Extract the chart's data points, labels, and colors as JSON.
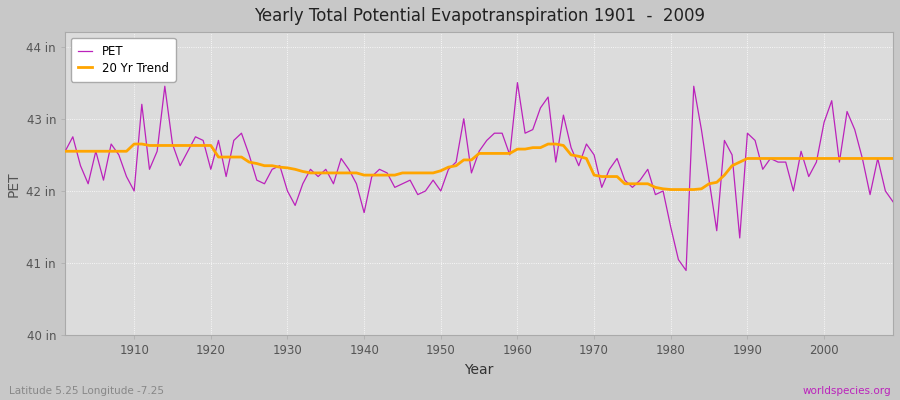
{
  "title": "Yearly Total Potential Evapotranspiration 1901  -  2009",
  "xlabel": "Year",
  "ylabel": "PET",
  "subtitle": "Latitude 5.25 Longitude -7.25",
  "watermark": "worldspecies.org",
  "pet_color": "#BB22BB",
  "trend_color": "#FFA500",
  "fig_bg_color": "#C8C8C8",
  "plot_bg_color": "#DCDCDC",
  "ylim": [
    40.0,
    44.2
  ],
  "yticks": [
    40,
    41,
    42,
    43,
    44
  ],
  "ytick_labels": [
    "40 in",
    "41 in",
    "42 in",
    "43 in",
    "44 in"
  ],
  "xlim": [
    1901,
    2009
  ],
  "xticks": [
    1910,
    1920,
    1930,
    1940,
    1950,
    1960,
    1970,
    1980,
    1990,
    2000
  ],
  "years": [
    1901,
    1902,
    1903,
    1904,
    1905,
    1906,
    1907,
    1908,
    1909,
    1910,
    1911,
    1912,
    1913,
    1914,
    1915,
    1916,
    1917,
    1918,
    1919,
    1920,
    1921,
    1922,
    1923,
    1924,
    1925,
    1926,
    1927,
    1928,
    1929,
    1930,
    1931,
    1932,
    1933,
    1934,
    1935,
    1936,
    1937,
    1938,
    1939,
    1940,
    1941,
    1942,
    1943,
    1944,
    1945,
    1946,
    1947,
    1948,
    1949,
    1950,
    1951,
    1952,
    1953,
    1954,
    1955,
    1956,
    1957,
    1958,
    1959,
    1960,
    1961,
    1962,
    1963,
    1964,
    1965,
    1966,
    1967,
    1968,
    1969,
    1970,
    1971,
    1972,
    1973,
    1974,
    1975,
    1976,
    1977,
    1978,
    1979,
    1980,
    1981,
    1982,
    1983,
    1984,
    1985,
    1986,
    1987,
    1988,
    1989,
    1990,
    1991,
    1992,
    1993,
    1994,
    1995,
    1996,
    1997,
    1998,
    1999,
    2000,
    2001,
    2002,
    2003,
    2004,
    2005,
    2006,
    2007,
    2008,
    2009
  ],
  "pet_values": [
    42.55,
    42.75,
    42.35,
    42.1,
    42.55,
    42.15,
    42.65,
    42.5,
    42.2,
    42.0,
    43.2,
    42.3,
    42.55,
    43.45,
    42.65,
    42.35,
    42.55,
    42.75,
    42.7,
    42.3,
    42.7,
    42.2,
    42.7,
    42.8,
    42.5,
    42.15,
    42.1,
    42.3,
    42.35,
    42.0,
    41.8,
    42.1,
    42.3,
    42.2,
    42.3,
    42.1,
    42.45,
    42.3,
    42.1,
    41.7,
    42.2,
    42.3,
    42.25,
    42.05,
    42.1,
    42.15,
    41.95,
    42.0,
    42.15,
    42.0,
    42.3,
    42.4,
    43.0,
    42.25,
    42.55,
    42.7,
    42.8,
    42.8,
    42.5,
    43.5,
    42.8,
    42.85,
    43.15,
    43.3,
    42.4,
    43.05,
    42.6,
    42.35,
    42.65,
    42.5,
    42.05,
    42.3,
    42.45,
    42.15,
    42.05,
    42.15,
    42.3,
    41.95,
    42.0,
    41.5,
    41.05,
    40.9,
    43.45,
    42.85,
    42.15,
    41.45,
    42.7,
    42.5,
    41.35,
    42.8,
    42.7,
    42.3,
    42.45,
    42.4,
    42.4,
    42.0,
    42.55,
    42.2,
    42.4,
    42.95,
    43.25,
    42.4,
    43.1,
    42.85,
    42.45,
    41.95,
    42.45,
    42.0,
    41.85
  ],
  "trend_values": [
    42.55,
    42.55,
    42.55,
    42.55,
    42.55,
    42.55,
    42.55,
    42.55,
    42.55,
    42.65,
    42.65,
    42.63,
    42.63,
    42.63,
    42.63,
    42.63,
    42.63,
    42.63,
    42.63,
    42.63,
    42.47,
    42.47,
    42.47,
    42.47,
    42.4,
    42.38,
    42.35,
    42.35,
    42.33,
    42.32,
    42.3,
    42.27,
    42.25,
    42.25,
    42.25,
    42.25,
    42.25,
    42.25,
    42.25,
    42.22,
    42.22,
    42.22,
    42.22,
    42.22,
    42.25,
    42.25,
    42.25,
    42.25,
    42.25,
    42.28,
    42.33,
    42.35,
    42.43,
    42.43,
    42.52,
    42.52,
    42.52,
    42.52,
    42.52,
    42.58,
    42.58,
    42.6,
    42.6,
    42.65,
    42.65,
    42.63,
    42.5,
    42.48,
    42.45,
    42.22,
    42.2,
    42.2,
    42.2,
    42.1,
    42.1,
    42.1,
    42.1,
    42.05,
    42.03,
    42.02,
    42.02,
    42.02,
    42.02,
    42.03,
    42.1,
    42.12,
    42.22,
    42.35,
    42.4,
    42.45,
    42.45,
    42.45,
    42.45,
    42.45,
    42.45,
    42.45,
    42.45,
    42.45,
    42.45,
    42.45,
    42.45,
    42.45,
    42.45,
    42.45,
    42.45,
    42.45,
    42.45,
    42.45,
    42.45
  ]
}
